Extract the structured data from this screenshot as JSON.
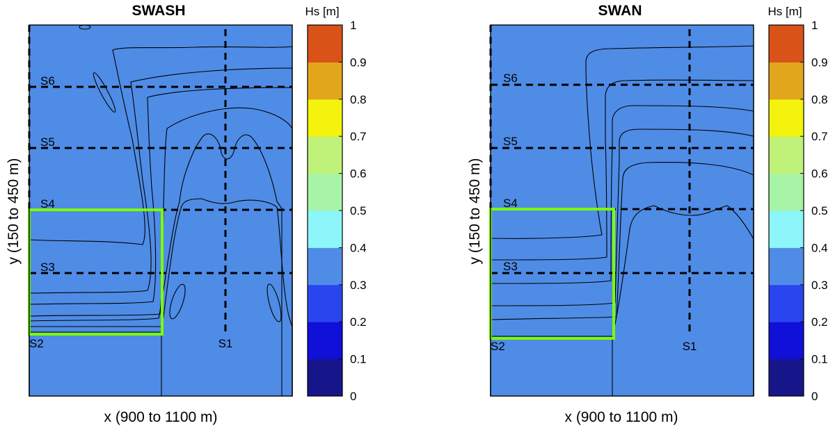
{
  "chart_data": [
    {
      "type": "contour",
      "title": "SWASH",
      "xlabel": "x (900 to 1100 m)",
      "ylabel": "y (150 to 450 m)",
      "colorbar": {
        "label": "Hs [m]",
        "ticks": [
          "1",
          "0.9",
          "0.8",
          "0.7",
          "0.6",
          "0.5",
          "0.4",
          "0.3",
          "0.2",
          "0.1",
          "0"
        ],
        "range": [
          0,
          1
        ]
      },
      "sections": [
        "S1",
        "S2",
        "S3",
        "S4",
        "S5",
        "S6"
      ]
    },
    {
      "type": "contour",
      "title": "SWAN",
      "xlabel": "x (900 to 1100 m)",
      "ylabel": "y (150 to 450 m)",
      "colorbar": {
        "label": "Hs [m]",
        "ticks": [
          "1",
          "0.9",
          "0.8",
          "0.7",
          "0.6",
          "0.5",
          "0.4",
          "0.3",
          "0.2",
          "0.1",
          "0"
        ],
        "range": [
          0,
          1
        ]
      },
      "sections": [
        "S1",
        "S2",
        "S3",
        "S4",
        "S5",
        "S6"
      ]
    }
  ],
  "colors": {
    "c0": "#16168a",
    "c1": "#1010d8",
    "c2": "#2a45ee",
    "c3": "#4f8ce6",
    "c4": "#8cf6fb",
    "c5": "#a7f4a6",
    "c6": "#c0f27a",
    "c7": "#f3f30d",
    "c8": "#e2a61c",
    "c9": "#d95218",
    "threshold_box": "#7CFC00"
  }
}
